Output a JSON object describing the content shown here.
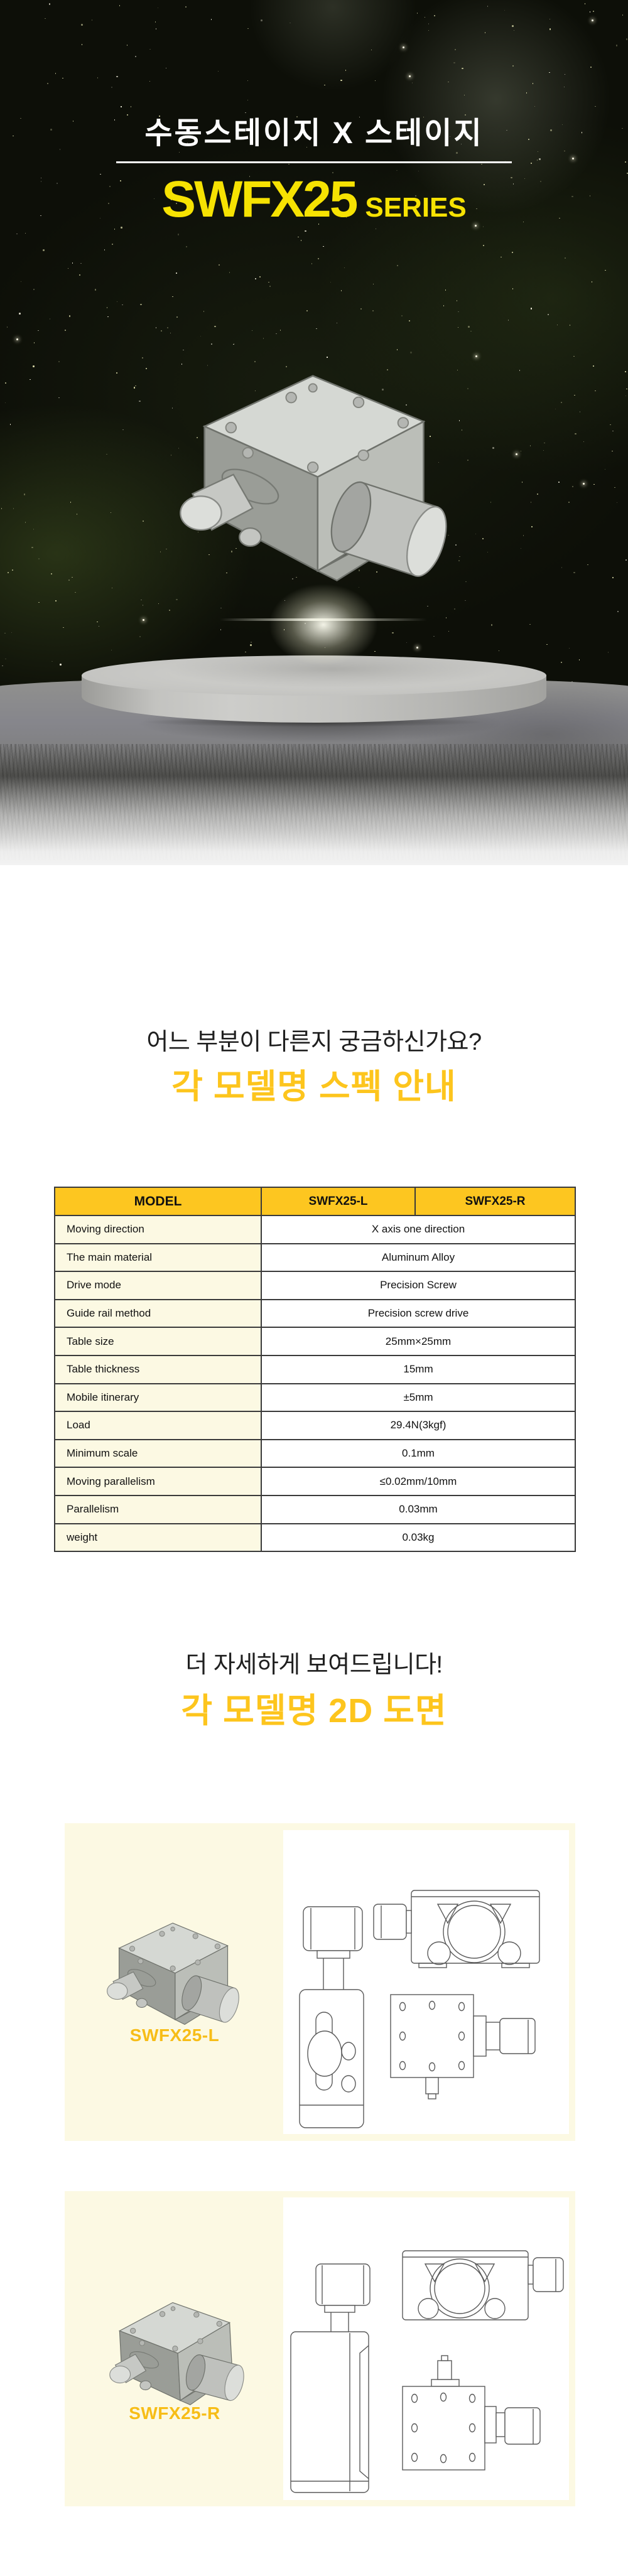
{
  "hero": {
    "title": "수동스테이지 X 스테이지",
    "model": "SWFX25",
    "series": "SERIES"
  },
  "spec_section": {
    "subtitle": "어느 부분이 다른지 궁금하신가요?",
    "title": "각 모델명 스펙 안내",
    "table": {
      "model_header": "MODEL",
      "columns": [
        "SWFX25-L",
        "SWFX25-R"
      ],
      "rows": [
        {
          "label": "Moving direction",
          "value": "X axis one direction"
        },
        {
          "label": "The main material",
          "value": "Aluminum Alloy"
        },
        {
          "label": "Drive mode",
          "value": "Precision Screw"
        },
        {
          "label": "Guide rail method",
          "value": "Precision screw drive"
        },
        {
          "label": "Table size",
          "value": "25mm×25mm"
        },
        {
          "label": "Table thickness",
          "value": "15mm"
        },
        {
          "label": "Mobile itinerary",
          "value": "±5mm"
        },
        {
          "label": "Load",
          "value": "29.4N(3kgf)"
        },
        {
          "label": "Minimum scale",
          "value": "0.1mm"
        },
        {
          "label": "Moving parallelism",
          "value": "≤0.02mm/10mm"
        },
        {
          "label": "Parallelism",
          "value": "0.03mm"
        },
        {
          "label": "weight",
          "value": "0.03kg"
        }
      ]
    }
  },
  "drawing_section": {
    "subtitle": "더 자세하게 보여드립니다!",
    "title": "각 모델명 2D 도면",
    "blocks": [
      {
        "label": "SWFX25-L"
      },
      {
        "label": "SWFX25-R"
      }
    ]
  },
  "colors": {
    "hero_background": "#0d0f08",
    "hero_model_yellow": "#f6e202",
    "heading_yellow": "#fdc51d",
    "table_header_yellow": "#fdc620",
    "cream_panel": "#fcf9e3",
    "block_label_yellow": "#f7bd17",
    "table_border": "#3a3a3a"
  }
}
